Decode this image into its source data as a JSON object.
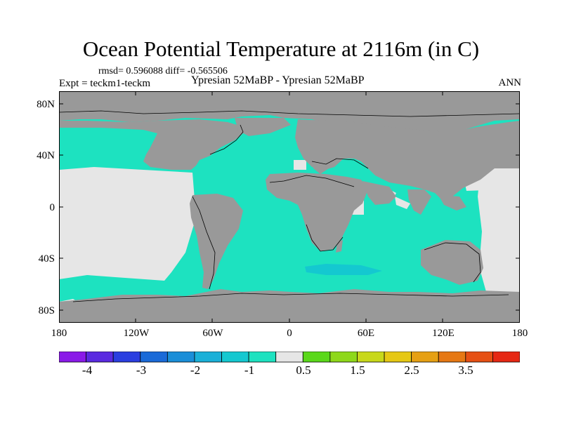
{
  "title": "Ocean Potential Temperature at 2116m (in C)",
  "stats_text": "rmsd= 0.596088 diff= -0.565506",
  "expt_text": "Expt = teckm1-teckm",
  "subtitle": "Ypresian  52MaBP - Ypresian  52MaBP",
  "season": "ANN",
  "map": {
    "land_color": "#999999",
    "main_ocean_color": "#1de2c0",
    "near_zero_color": "#e6e6e6",
    "lat_labels": [
      "80N",
      "40N",
      "0",
      "40S",
      "80S"
    ],
    "lon_labels": [
      "180",
      "120W",
      "60W",
      "0",
      "60E",
      "120E",
      "180"
    ]
  },
  "colorbar": {
    "colors": [
      "#8a1ae8",
      "#5a2ae0",
      "#2a3ee0",
      "#1a6ad8",
      "#1a8ed8",
      "#1ab0d8",
      "#14c8d0",
      "#1de2c0",
      "#e6e6e6",
      "#5ad81a",
      "#8ed81a",
      "#c8d81a",
      "#e6c814",
      "#e6a014",
      "#e67814",
      "#e65014",
      "#e62814"
    ],
    "labels": [
      "-4",
      "-3",
      "-2",
      "-1",
      "0.5",
      "1.5",
      "2.5",
      "3.5"
    ]
  }
}
